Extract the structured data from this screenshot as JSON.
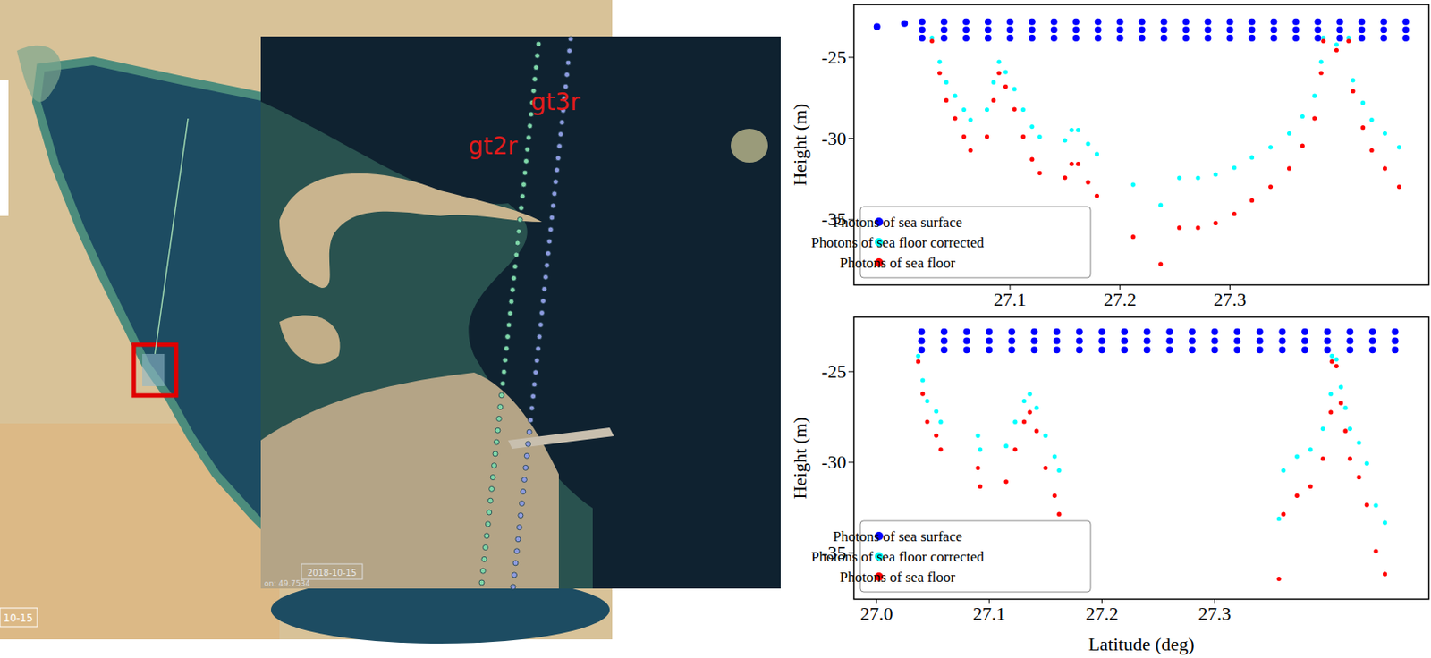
{
  "chart_data": [
    {
      "type": "scatter",
      "y_label": "Height (m)",
      "xlim": [
        26.958,
        27.481
      ],
      "xticks": [
        27.1,
        27.2,
        27.3
      ],
      "ylim": [
        -39.04,
        -21.74
      ],
      "yticks": [
        -25,
        -30,
        -35
      ],
      "grid": false,
      "legend": "lower left",
      "series": [
        {
          "name": "Photons of sea surface",
          "color": "#0000ff",
          "x": [
            26.979,
            27.004,
            27.02,
            27.02,
            27.02,
            27.04,
            27.04,
            27.04,
            27.06,
            27.06,
            27.06,
            27.08,
            27.08,
            27.08,
            27.1,
            27.1,
            27.1,
            27.12,
            27.12,
            27.12,
            27.14,
            27.14,
            27.14,
            27.16,
            27.16,
            27.16,
            27.18,
            27.18,
            27.18,
            27.2,
            27.2,
            27.2,
            27.22,
            27.22,
            27.22,
            27.24,
            27.24,
            27.24,
            27.26,
            27.26,
            27.26,
            27.28,
            27.28,
            27.28,
            27.3,
            27.3,
            27.3,
            27.32,
            27.32,
            27.32,
            27.34,
            27.34,
            27.34,
            27.36,
            27.36,
            27.36,
            27.38,
            27.38,
            27.38,
            27.4,
            27.4,
            27.4,
            27.42,
            27.42,
            27.42,
            27.44,
            27.44,
            27.44,
            27.46,
            27.46,
            27.46
          ],
          "values": [
            -23.1,
            -22.9,
            -22.8,
            -23.3,
            -23.8,
            -22.8,
            -23.3,
            -23.8,
            -22.8,
            -23.3,
            -23.8,
            -22.8,
            -23.3,
            -23.8,
            -22.8,
            -23.3,
            -23.8,
            -22.8,
            -23.3,
            -23.8,
            -22.8,
            -23.3,
            -23.8,
            -22.8,
            -23.3,
            -23.8,
            -22.8,
            -23.3,
            -23.8,
            -22.8,
            -23.3,
            -23.8,
            -22.8,
            -23.3,
            -23.8,
            -22.8,
            -23.3,
            -23.8,
            -22.8,
            -23.3,
            -23.8,
            -22.8,
            -23.3,
            -23.8,
            -22.8,
            -23.3,
            -23.8,
            -22.8,
            -23.3,
            -23.8,
            -22.8,
            -23.3,
            -23.8,
            -22.8,
            -23.3,
            -23.8,
            -22.8,
            -23.3,
            -23.8,
            -22.8,
            -23.3,
            -23.8,
            -22.8,
            -23.3,
            -23.8,
            -22.8,
            -23.3,
            -23.8,
            -22.8,
            -23.3,
            -23.8
          ]
        },
        {
          "name": "Photons of sea floor corrected",
          "color": "#00ffff",
          "x": [
            27.029,
            27.036,
            27.042,
            27.05,
            27.058,
            27.064,
            27.079,
            27.085,
            27.09,
            27.096,
            27.104,
            27.112,
            27.12,
            27.127,
            27.15,
            27.156,
            27.162,
            27.171,
            27.179,
            27.212,
            27.237,
            27.254,
            27.271,
            27.287,
            27.304,
            27.32,
            27.337,
            27.354,
            27.366,
            27.377,
            27.383,
            27.385,
            27.397,
            27.408,
            27.412,
            27.421,
            27.429,
            27.441,
            27.454
          ],
          "values": [
            -23.79,
            -25.27,
            -26.53,
            -27.37,
            -28.22,
            -28.85,
            -28.22,
            -26.53,
            -25.27,
            -25.9,
            -26.95,
            -28.22,
            -29.27,
            -29.9,
            -30.12,
            -29.48,
            -29.48,
            -30.33,
            -30.96,
            -32.85,
            -34.11,
            -32.43,
            -32.43,
            -32.22,
            -31.8,
            -31.17,
            -30.54,
            -29.69,
            -28.64,
            -27.37,
            -25.27,
            -23.79,
            -24.21,
            -23.79,
            -26.41,
            -27.8,
            -28.85,
            -29.69,
            -30.54
          ]
        },
        {
          "name": "Photons of sea floor",
          "color": "#ff0000",
          "x": [
            27.029,
            27.036,
            27.042,
            27.05,
            27.058,
            27.064,
            27.079,
            27.085,
            27.09,
            27.096,
            27.104,
            27.112,
            27.12,
            27.127,
            27.15,
            27.156,
            27.162,
            27.171,
            27.179,
            27.212,
            27.237,
            27.254,
            27.271,
            27.287,
            27.304,
            27.32,
            27.337,
            27.354,
            27.366,
            27.377,
            27.383,
            27.385,
            27.397,
            27.408,
            27.412,
            27.421,
            27.429,
            27.441,
            27.454
          ],
          "values": [
            -23.99,
            -25.96,
            -27.64,
            -28.76,
            -29.89,
            -30.73,
            -29.89,
            -27.64,
            -25.96,
            -26.8,
            -28.2,
            -29.89,
            -31.29,
            -32.13,
            -32.42,
            -31.57,
            -31.57,
            -32.7,
            -33.54,
            -36.07,
            -37.75,
            -35.51,
            -35.51,
            -35.22,
            -34.66,
            -33.82,
            -32.98,
            -31.85,
            -30.45,
            -28.76,
            -25.96,
            -23.99,
            -24.55,
            -23.99,
            -27.08,
            -29.33,
            -30.73,
            -31.85,
            -32.98
          ]
        }
      ]
    },
    {
      "type": "scatter",
      "x_label": "Latitude (deg)",
      "y_label": "Height (m)",
      "xlim": [
        26.98,
        27.49
      ],
      "xticks": [
        {
          "value": 27,
          "label": "27.0"
        },
        27.1,
        27.2,
        27.3
      ],
      "ylim": [
        -37.55,
        -21.99
      ],
      "yticks": [
        -25,
        -30,
        -35
      ],
      "grid": false,
      "legend": "lower left",
      "series": [
        {
          "name": "Photons of sea surface",
          "color": "#0000ff",
          "x": [
            27.04,
            27.04,
            27.04,
            27.06,
            27.06,
            27.06,
            27.08,
            27.08,
            27.08,
            27.1,
            27.1,
            27.1,
            27.12,
            27.12,
            27.12,
            27.14,
            27.14,
            27.14,
            27.16,
            27.16,
            27.16,
            27.18,
            27.18,
            27.18,
            27.2,
            27.2,
            27.2,
            27.22,
            27.22,
            27.22,
            27.24,
            27.24,
            27.24,
            27.26,
            27.26,
            27.26,
            27.28,
            27.28,
            27.28,
            27.3,
            27.3,
            27.3,
            27.32,
            27.32,
            27.32,
            27.34,
            27.34,
            27.34,
            27.36,
            27.36,
            27.36,
            27.38,
            27.38,
            27.38,
            27.4,
            27.4,
            27.4,
            27.42,
            27.42,
            27.42,
            27.44,
            27.44,
            27.44,
            27.46,
            27.46,
            27.46
          ],
          "values": [
            -22.8,
            -23.3,
            -23.8,
            -22.8,
            -23.3,
            -23.8,
            -22.8,
            -23.3,
            -23.8,
            -22.8,
            -23.3,
            -23.8,
            -22.8,
            -23.3,
            -23.8,
            -22.8,
            -23.3,
            -23.8,
            -22.8,
            -23.3,
            -23.8,
            -22.8,
            -23.3,
            -23.8,
            -22.8,
            -23.3,
            -23.8,
            -22.8,
            -23.3,
            -23.8,
            -22.8,
            -23.3,
            -23.8,
            -22.8,
            -23.3,
            -23.8,
            -22.8,
            -23.3,
            -23.8,
            -22.8,
            -23.3,
            -23.8,
            -22.8,
            -23.3,
            -23.8,
            -22.8,
            -23.3,
            -23.8,
            -22.8,
            -23.3,
            -23.8,
            -22.8,
            -23.3,
            -23.8,
            -22.8,
            -23.3,
            -23.8,
            -22.8,
            -23.3,
            -23.8,
            -22.8,
            -23.3,
            -23.8,
            -22.8,
            -23.3,
            -23.8
          ]
        },
        {
          "name": "Photons of sea floor corrected",
          "color": "#00ffff",
          "x": [
            27.037,
            27.041,
            27.045,
            27.053,
            27.057,
            27.09,
            27.092,
            27.115,
            27.123,
            27.131,
            27.136,
            27.142,
            27.15,
            27.158,
            27.162,
            27.357,
            27.361,
            27.373,
            27.385,
            27.396,
            27.403,
            27.404,
            27.408,
            27.412,
            27.416,
            27.42,
            27.428,
            27.435,
            27.443,
            27.451
          ],
          "values": [
            -24.13,
            -25.47,
            -26.62,
            -27.19,
            -27.77,
            -28.53,
            -29.3,
            -29.1,
            -27.77,
            -26.62,
            -26.23,
            -27.0,
            -28.53,
            -29.68,
            -30.45,
            -33.12,
            -30.45,
            -29.68,
            -29.3,
            -28.15,
            -26.23,
            -24.13,
            -24.32,
            -25.85,
            -27.0,
            -28.15,
            -28.92,
            -30.06,
            -32.38,
            -33.33
          ]
        },
        {
          "name": "Photons of sea floor",
          "color": "#ff0000",
          "x": [
            27.037,
            27.041,
            27.045,
            27.053,
            27.057,
            27.09,
            27.092,
            27.115,
            27.123,
            27.131,
            27.136,
            27.142,
            27.15,
            27.158,
            27.162,
            27.357,
            27.361,
            27.373,
            27.385,
            27.396,
            27.403,
            27.404,
            27.408,
            27.412,
            27.416,
            27.42,
            27.428,
            27.435,
            27.443,
            27.451
          ],
          "values": [
            -24.44,
            -26.22,
            -27.76,
            -28.52,
            -29.29,
            -30.31,
            -31.33,
            -31.07,
            -29.29,
            -27.76,
            -27.24,
            -28.27,
            -30.31,
            -31.84,
            -32.86,
            -36.43,
            -32.86,
            -31.84,
            -31.33,
            -29.8,
            -27.24,
            -24.44,
            -24.69,
            -26.73,
            -28.27,
            -29.8,
            -30.82,
            -32.35,
            -34.9,
            -36.17
          ]
        }
      ]
    }
  ],
  "map": {
    "tracks": [
      "gt2r",
      "gt3r"
    ],
    "stamps": [
      "2018-10-15",
      "10-15"
    ],
    "coordinate_text": "on: 49.7534"
  }
}
